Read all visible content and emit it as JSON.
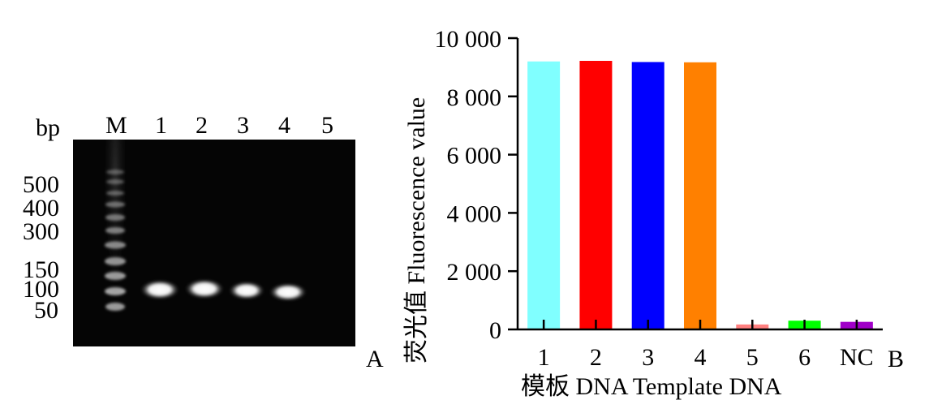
{
  "panel_a": {
    "marker": "A",
    "unit_label": "bp",
    "lane_labels": [
      "M",
      "1",
      "2",
      "3",
      "4",
      "5"
    ],
    "ladder_labels": [
      "500",
      "400",
      "300",
      "150",
      "100",
      "50"
    ]
  },
  "panel_b": {
    "marker": "B",
    "xlabel": "模板 DNA  Template  DNA",
    "ylabel": "荧光值  Fluorescence  value"
  },
  "chart_data": {
    "type": "bar",
    "categories": [
      "1",
      "2",
      "3",
      "4",
      "5",
      "6",
      "NC"
    ],
    "series": [
      {
        "values": [
          9200,
          9220,
          9180,
          9170,
          170,
          300,
          260
        ]
      }
    ],
    "colors": [
      "#80ffff",
      "#ff0000",
      "#0000ff",
      "#ff8000",
      "#ff8080",
      "#00ff00",
      "#a000c8"
    ],
    "ylim": [
      0,
      10000
    ],
    "yticks": [
      0,
      2000,
      4000,
      6000,
      8000,
      10000
    ],
    "ytick_labels": [
      "0",
      "2 000",
      "4 000",
      "6 000",
      "8 000",
      "10 000"
    ],
    "xlabel": "模板 DNA  Template  DNA",
    "ylabel": "荧光值  Fluorescence  value"
  }
}
